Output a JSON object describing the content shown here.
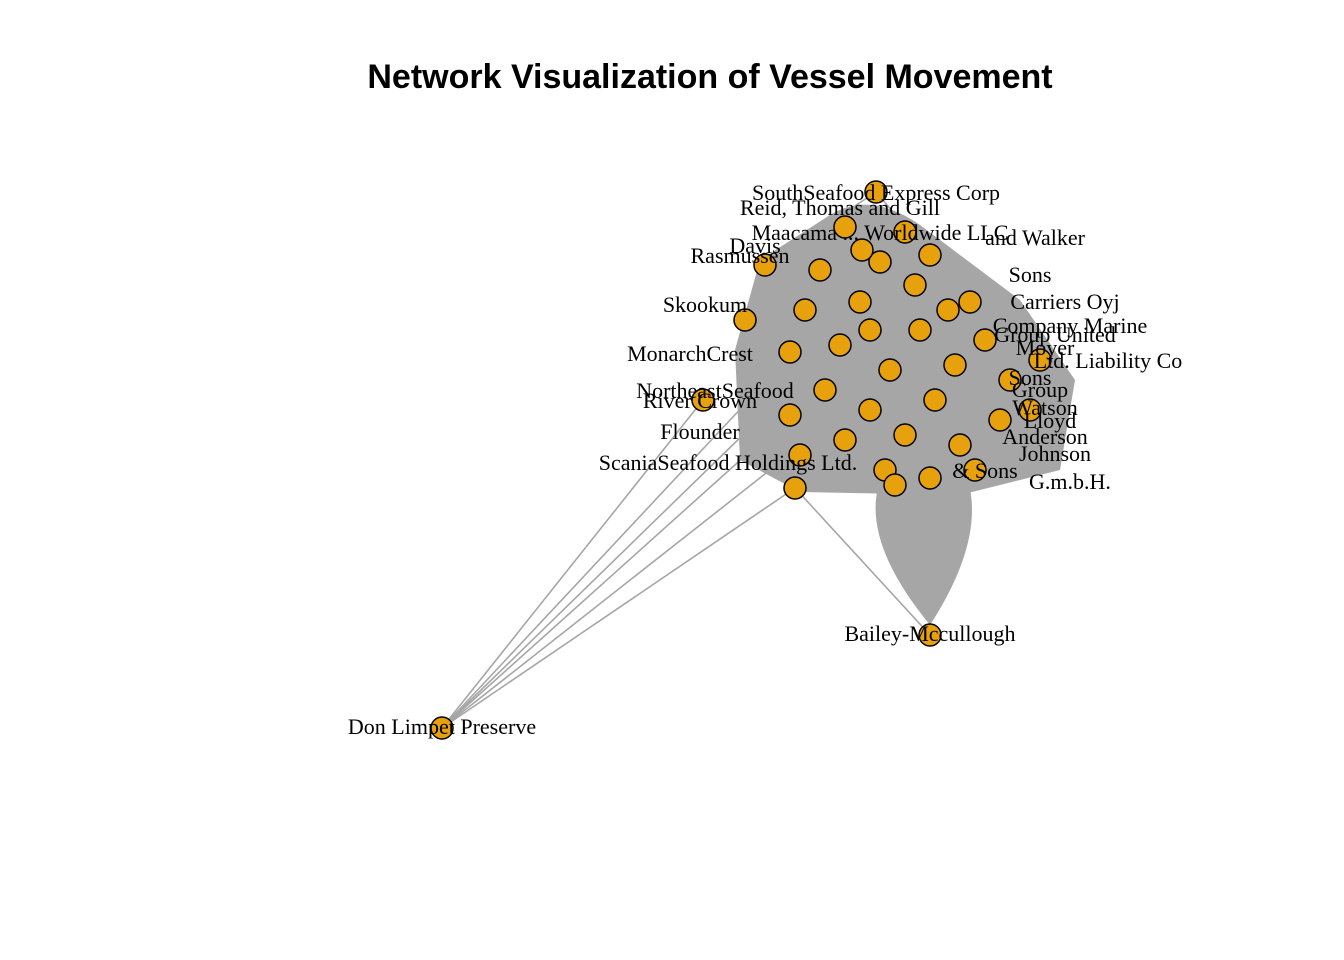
{
  "title": "Network Visualization of Vessel Movement",
  "colors": {
    "node_fill": "#E6A10C",
    "node_stroke": "#000000",
    "edge": "#A6A6A6",
    "label": "#000000"
  },
  "nodes": [
    {
      "id": "south",
      "label": "SouthSeafood Express Corp"
    },
    {
      "id": "reid",
      "label": "Reid, Thomas and Gill"
    },
    {
      "id": "worldwide",
      "label": "Maacama ... Worldwide LLC"
    },
    {
      "id": "walker",
      "label": "and Walker"
    },
    {
      "id": "davis",
      "label": "Davis"
    },
    {
      "id": "rasm",
      "label": "Rasmussen"
    },
    {
      "id": "sons1",
      "label": "Sons"
    },
    {
      "id": "carriers",
      "label": "Carriers Oyj"
    },
    {
      "id": "sknow",
      "label": "Skookum"
    },
    {
      "id": "marine",
      "label": "Company Marine"
    },
    {
      "id": "united",
      "label": "Group United"
    },
    {
      "id": "monarch",
      "label": "MonarchCrest"
    },
    {
      "id": "moyer",
      "label": "Moyer"
    },
    {
      "id": "llc",
      "label": "Ltd. Liability Co"
    },
    {
      "id": "sonsb",
      "label": "Sons"
    },
    {
      "id": "group",
      "label": "Group"
    },
    {
      "id": "northeast",
      "label": "NortheastSeafood"
    },
    {
      "id": "river",
      "label": "River Crown"
    },
    {
      "id": "watson",
      "label": "Watson"
    },
    {
      "id": "lloyd",
      "label": "Lloyd"
    },
    {
      "id": "flounder",
      "label": "Flounder"
    },
    {
      "id": "anderson",
      "label": "Anderson"
    },
    {
      "id": "johnson",
      "label": "Johnson"
    },
    {
      "id": "scania",
      "label": "ScaniaSeafood Holdings Ltd."
    },
    {
      "id": "sonsc",
      "label": "& Sons"
    },
    {
      "id": "gmbh",
      "label": "G.m.b.H."
    },
    {
      "id": "bailey",
      "label": "Bailey-Mccullough"
    },
    {
      "id": "don",
      "label": "Don Limpet Preserve"
    }
  ],
  "edges": [
    [
      "don",
      "river"
    ],
    [
      "don",
      "scania"
    ],
    [
      "don",
      "flounder"
    ],
    [
      "don",
      "northeast"
    ],
    [
      "bailey",
      "scania"
    ],
    [
      "bailey",
      "gmbh"
    ],
    [
      "bailey",
      "sonsc"
    ],
    [
      "bailey",
      "johnson"
    ],
    [
      "south",
      "rasm"
    ],
    [
      "south",
      "carriers"
    ],
    [
      "monarch",
      "llc"
    ],
    [
      "river",
      "moyer"
    ]
  ]
}
